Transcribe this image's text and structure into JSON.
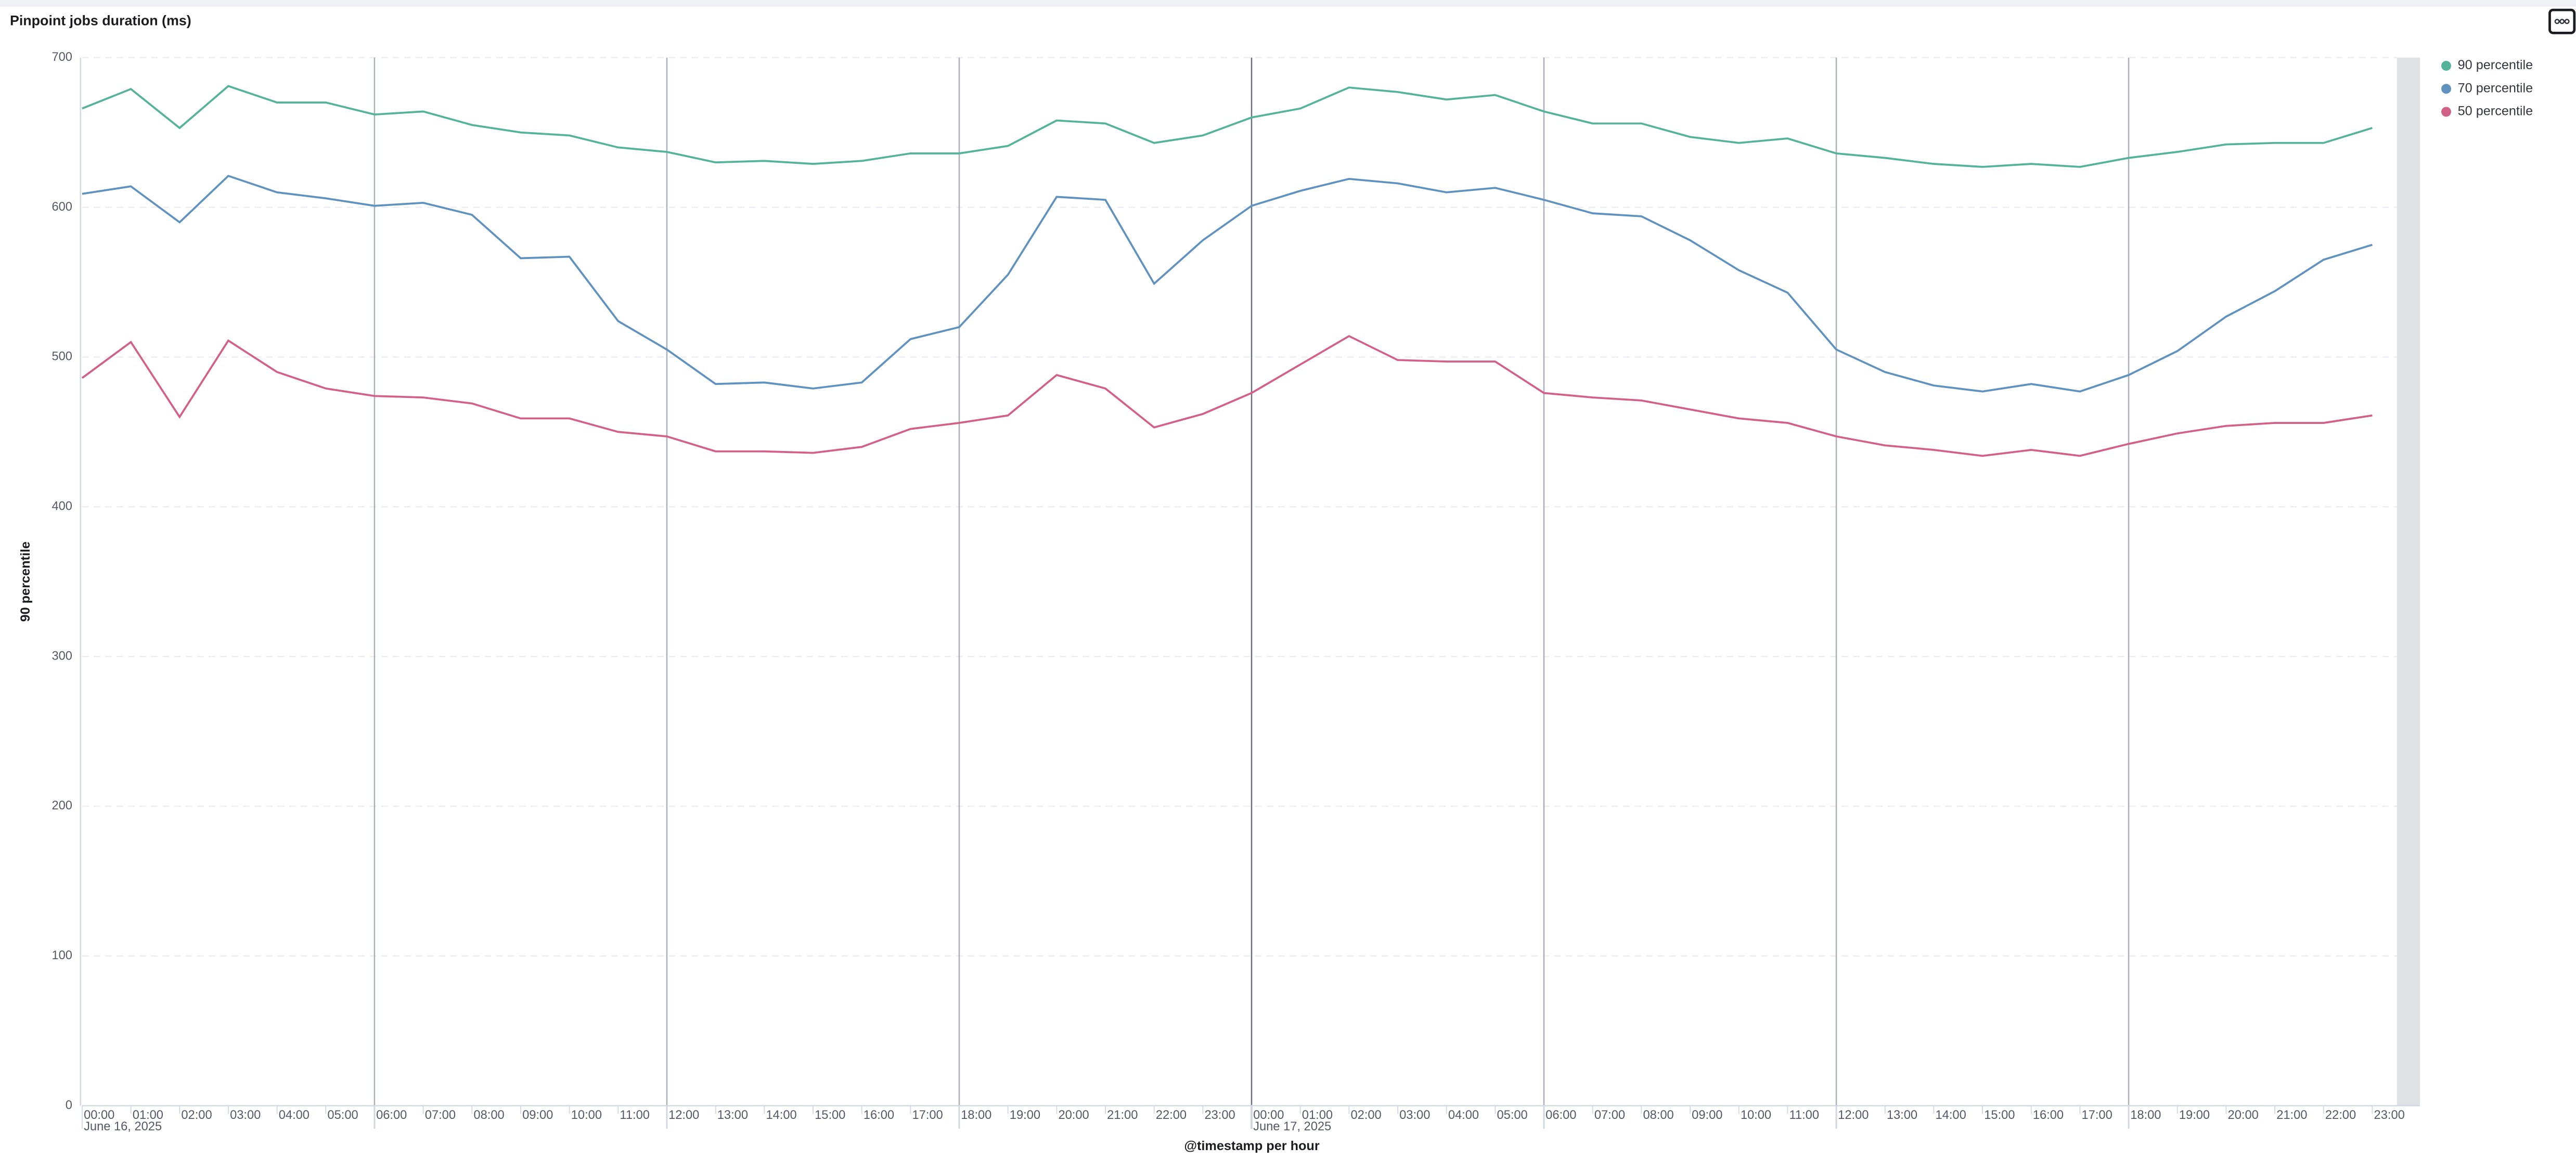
{
  "chart_data": {
    "type": "line",
    "title": "Pinpoint jobs duration (ms)",
    "y_label": "90 percentile",
    "x_label": "@timestamp per hour",
    "categories": [
      "00:00",
      "01:00",
      "02:00",
      "03:00",
      "04:00",
      "05:00",
      "06:00",
      "07:00",
      "08:00",
      "09:00",
      "10:00",
      "11:00",
      "12:00",
      "13:00",
      "14:00",
      "15:00",
      "16:00",
      "17:00",
      "18:00",
      "19:00",
      "20:00",
      "21:00",
      "22:00",
      "23:00",
      "00:00",
      "01:00",
      "02:00",
      "03:00",
      "04:00",
      "05:00",
      "06:00",
      "07:00",
      "08:00",
      "09:00",
      "10:00",
      "11:00",
      "12:00",
      "13:00",
      "14:00",
      "15:00",
      "16:00",
      "17:00",
      "18:00",
      "19:00",
      "20:00",
      "21:00",
      "22:00",
      "23:00"
    ],
    "date_labels": [
      "June 16, 2025",
      "June 17, 2025"
    ],
    "series": [
      {
        "name": "90 percentile",
        "color": "#54b399",
        "values": [
          666,
          679,
          653,
          681,
          670,
          670,
          662,
          664,
          655,
          650,
          648,
          640,
          637,
          630,
          631,
          629,
          631,
          636,
          636,
          641,
          658,
          656,
          643,
          648,
          660,
          666,
          680,
          677,
          672,
          675,
          664,
          656,
          656,
          647,
          643,
          646,
          636,
          633,
          629,
          627,
          629,
          627,
          633,
          637,
          642,
          643,
          643,
          653
        ]
      },
      {
        "name": "70 percentile",
        "color": "#6092c0",
        "values": [
          609,
          614,
          590,
          621,
          610,
          606,
          601,
          603,
          595,
          566,
          567,
          524,
          505,
          482,
          483,
          479,
          483,
          512,
          520,
          555,
          607,
          605,
          549,
          578,
          601,
          611,
          619,
          616,
          610,
          613,
          605,
          596,
          594,
          578,
          558,
          543,
          505,
          490,
          481,
          477,
          482,
          477,
          488,
          504,
          527,
          544,
          565,
          575
        ]
      },
      {
        "name": "50 percentile",
        "color": "#d36086",
        "values": [
          486,
          510,
          460,
          511,
          490,
          479,
          474,
          473,
          469,
          459,
          459,
          450,
          447,
          437,
          437,
          436,
          440,
          452,
          456,
          461,
          488,
          479,
          453,
          462,
          476,
          495,
          514,
          498,
          497,
          497,
          476,
          473,
          471,
          465,
          459,
          456,
          447,
          441,
          438,
          434,
          438,
          434,
          442,
          449,
          454,
          456,
          456,
          461
        ]
      }
    ],
    "ylim": [
      0,
      700
    ],
    "yticks": [
      0,
      100,
      200,
      300,
      400,
      500,
      600,
      700
    ],
    "grid": true,
    "legend": "right-top"
  }
}
